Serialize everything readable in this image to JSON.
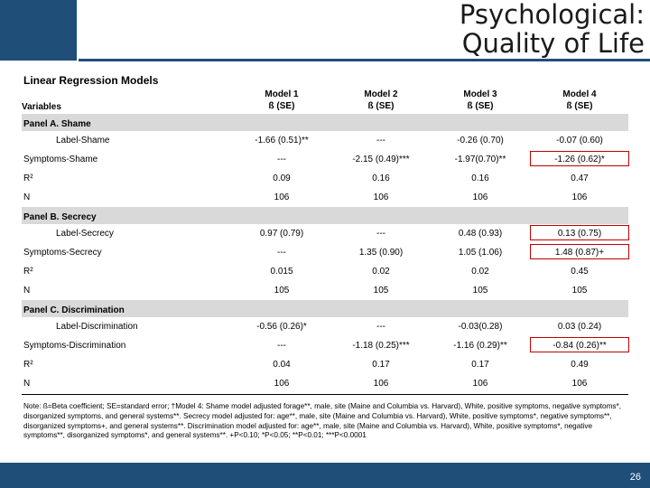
{
  "slide": {
    "title_line1": "Psychological:",
    "title_line2": "Quality of Life",
    "subtitle": "Linear Regression Models",
    "page_number": "26"
  },
  "header": {
    "variables": "Variables",
    "models": [
      {
        "name": "Model 1",
        "stat": "ß (SE)"
      },
      {
        "name": "Model 2",
        "stat": "ß (SE)"
      },
      {
        "name": "Model 3",
        "stat": "ß (SE)"
      },
      {
        "name": "Model 4",
        "stat": "ß (SE)"
      }
    ]
  },
  "panels": [
    {
      "title": "Panel A. Shame",
      "rows": [
        {
          "label": "Label-Shame",
          "values": [
            "-1.66 (0.51)**",
            "---",
            "-0.26 (0.70)",
            "-0.07 (0.60)"
          ]
        },
        {
          "label": "Symptoms-Shame",
          "values": [
            "---",
            "-2.15 (0.49)***",
            "-1.97(0.70)**",
            "-1.26 (0.62)*"
          ]
        },
        {
          "label": "R²",
          "values": [
            "0.09",
            "0.16",
            "0.16",
            "0.47"
          ]
        },
        {
          "label": "N",
          "values": [
            "106",
            "106",
            "106",
            "106"
          ]
        }
      ]
    },
    {
      "title": "Panel B. Secrecy",
      "rows": [
        {
          "label": "Label-Secrecy",
          "values": [
            "0.97 (0.79)",
            "---",
            "0.48 (0.93)",
            "0.13 (0.75)"
          ]
        },
        {
          "label": "Symptoms-Secrecy",
          "values": [
            "---",
            "1.35 (0.90)",
            "1.05 (1.06)",
            "1.48 (0.87)+"
          ]
        },
        {
          "label": "R²",
          "values": [
            "0.015",
            "0.02",
            "0.02",
            "0.45"
          ]
        },
        {
          "label": "N",
          "values": [
            "105",
            "105",
            "105",
            "105"
          ]
        }
      ]
    },
    {
      "title": "Panel C. Discrimination",
      "rows": [
        {
          "label": "Label-Discrimination",
          "values": [
            "-0.56 (0.26)*",
            "---",
            "-0.03(0.28)",
            "0.03 (0.24)"
          ]
        },
        {
          "label": "Symptoms-Discrimination",
          "values": [
            "---",
            "-1.18 (0.25)***",
            "-1.16 (0.29)**",
            "-0.84 (0.26)**"
          ]
        },
        {
          "label": "R²",
          "values": [
            "0.04",
            "0.17",
            "0.17",
            "0.49"
          ]
        },
        {
          "label": "N",
          "values": [
            "106",
            "106",
            "106",
            "106"
          ]
        }
      ]
    }
  ],
  "note": "Note: ß=Beta coefficient; SE=standard error; †Model 4: Shame model adjusted forage**, male, site (Maine and Columbia vs. Harvard), White, positive symptoms, negative symptoms*, disorganized symptoms, and general systems**. Secrecy model adjusted for: age**, male, site (Maine and Columbia vs. Harvard), White, positive symptoms*, negative symptoms**, disorganized symptoms+, and general systems**. Discrimination model adjusted for: age**, male, site (Maine and Columbia vs. Harvard), White, positive symptoms*, negative symptoms**, disorganized symptoms*, and general systems**. +P<0.10; *P<0.05; **P<0.01; ***P<0.0001",
  "colors": {
    "brand": "#1f4e79",
    "panel_bg": "#d9d9d9",
    "highlight_border": "#c00000"
  }
}
